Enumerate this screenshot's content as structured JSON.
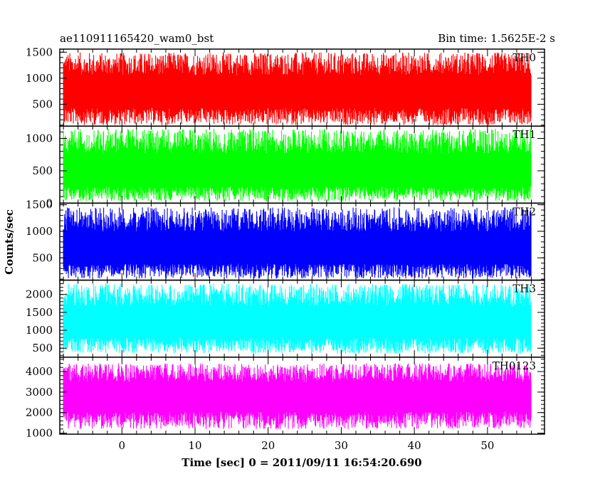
{
  "header": {
    "left_title": "ae110911165420_wam0_bst",
    "right_title": "Bin time: 1.5625E-2 s"
  },
  "chart_data": {
    "type": "line",
    "xlabel": "Time [sec] 0 = 2011/09/11 16:54:20.690",
    "ylabel": "Counts/sec",
    "xlim": [
      -8.5,
      57.8
    ],
    "x_ticks": [
      0,
      10,
      20,
      30,
      40,
      50
    ],
    "data_x_range": [
      -8.0,
      56.0
    ],
    "bin_time": 0.015625,
    "panels": [
      {
        "name": "TH0",
        "color": "#ff0000",
        "ylim": [
          80,
          1560
        ],
        "y_ticks": [
          500,
          1000,
          1500
        ],
        "y_tick_labels": [
          "500",
          "1000",
          "1500"
        ],
        "x": [
          -8,
          -4,
          0,
          4,
          8,
          12,
          16,
          20,
          24,
          28,
          32,
          36,
          40,
          44,
          48,
          52,
          56
        ],
        "y_mean": [
          700,
          700,
          705,
          700,
          700,
          700,
          700,
          700,
          700,
          700,
          700,
          700,
          700,
          700,
          700,
          700,
          700
        ],
        "y_max": [
          1500,
          1500,
          1490,
          1500,
          1500,
          1500,
          1500,
          1500,
          1500,
          1500,
          1500,
          1500,
          1500,
          1500,
          1500,
          1500,
          1500
        ],
        "y_min": [
          100,
          100,
          100,
          100,
          100,
          100,
          100,
          100,
          100,
          100,
          100,
          100,
          100,
          100,
          100,
          100,
          100
        ]
      },
      {
        "name": "TH1",
        "color": "#00ff00",
        "ylim": [
          0,
          1190
        ],
        "y_ticks": [
          0,
          500,
          1000
        ],
        "y_tick_labels": [
          "0",
          "500",
          "1000"
        ],
        "x": [
          -8,
          -4,
          0,
          4,
          8,
          12,
          16,
          20,
          24,
          28,
          32,
          36,
          40,
          44,
          48,
          52,
          56
        ],
        "y_mean": [
          450,
          450,
          450,
          450,
          450,
          450,
          450,
          450,
          450,
          450,
          450,
          450,
          450,
          450,
          450,
          450,
          450
        ],
        "y_max": [
          1150,
          1150,
          1150,
          1150,
          1150,
          1150,
          1150,
          1150,
          1150,
          1150,
          1150,
          1150,
          1150,
          1150,
          1150,
          1150,
          1150
        ],
        "y_min": [
          30,
          30,
          30,
          30,
          30,
          30,
          30,
          30,
          30,
          30,
          30,
          30,
          30,
          30,
          30,
          30,
          30
        ]
      },
      {
        "name": "TH2",
        "color": "#0000ff",
        "ylim": [
          80,
          1530
        ],
        "y_ticks": [
          500,
          1000,
          1500
        ],
        "y_tick_labels": [
          "500",
          "1000",
          "1500"
        ],
        "x": [
          -8,
          -4,
          0,
          4,
          8,
          12,
          16,
          20,
          24,
          28,
          32,
          36,
          40,
          44,
          48,
          52,
          56
        ],
        "y_mean": [
          620,
          620,
          620,
          620,
          620,
          620,
          620,
          620,
          620,
          620,
          620,
          620,
          620,
          620,
          620,
          620,
          620
        ],
        "y_max": [
          1450,
          1450,
          1450,
          1450,
          1450,
          1450,
          1450,
          1450,
          1450,
          1450,
          1450,
          1450,
          1450,
          1450,
          1450,
          1450,
          1450
        ],
        "y_min": [
          110,
          110,
          110,
          110,
          110,
          110,
          110,
          110,
          110,
          110,
          110,
          110,
          110,
          110,
          110,
          110,
          110
        ]
      },
      {
        "name": "TH3",
        "color": "#00ffff",
        "ylim": [
          250,
          2400
        ],
        "y_ticks": [
          500,
          1000,
          1500,
          2000
        ],
        "y_tick_labels": [
          "500",
          "1000",
          "1500",
          "2000"
        ],
        "x": [
          -8,
          -4,
          0,
          4,
          8,
          12,
          16,
          20,
          24,
          28,
          32,
          36,
          40,
          44,
          48,
          52,
          56
        ],
        "y_mean": [
          1150,
          1150,
          1150,
          1150,
          1150,
          1150,
          1150,
          1150,
          1150,
          1150,
          1150,
          1150,
          1150,
          1150,
          1150,
          1150,
          1150
        ],
        "y_max": [
          2300,
          2300,
          2300,
          2300,
          2300,
          2300,
          2300,
          2300,
          2300,
          2300,
          2300,
          2300,
          2300,
          2300,
          2300,
          2300,
          2300
        ],
        "y_min": [
          350,
          350,
          350,
          350,
          350,
          350,
          350,
          350,
          350,
          350,
          350,
          350,
          350,
          350,
          350,
          350,
          350
        ]
      },
      {
        "name": "TH0123",
        "color": "#ff00ff",
        "ylim": [
          950,
          4700
        ],
        "y_ticks": [
          1000,
          2000,
          3000,
          4000
        ],
        "y_tick_labels": [
          "1000",
          "2000",
          "3000",
          "4000"
        ],
        "x": [
          -8,
          -4,
          0,
          4,
          8,
          12,
          16,
          20,
          24,
          28,
          32,
          36,
          40,
          44,
          48,
          52,
          56
        ],
        "y_mean": [
          2750,
          2750,
          2750,
          2750,
          2750,
          2750,
          2750,
          2750,
          2750,
          2750,
          2750,
          2750,
          2750,
          2750,
          2750,
          2750,
          2750
        ],
        "y_max": [
          4400,
          4400,
          4400,
          4400,
          4400,
          4400,
          4400,
          4400,
          4400,
          4400,
          4400,
          4400,
          4400,
          4400,
          4400,
          4400,
          4400
        ],
        "y_min": [
          1200,
          1200,
          1200,
          1200,
          1200,
          1200,
          1200,
          1200,
          1200,
          1200,
          1200,
          1200,
          1200,
          1200,
          1200,
          1200,
          1200
        ]
      }
    ]
  }
}
